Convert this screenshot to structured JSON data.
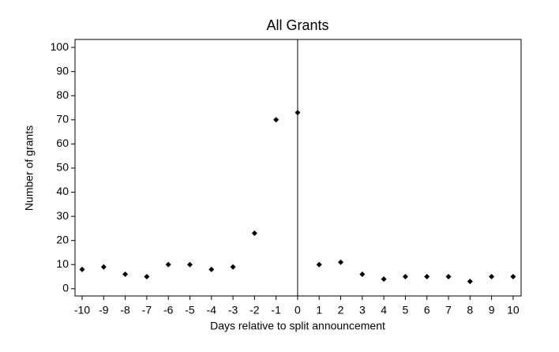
{
  "chart_data": {
    "type": "scatter",
    "title": "All Grants",
    "x_label": "Days relative to split announcement",
    "y_label": "Number of grants",
    "x": [
      -10,
      -9,
      -8,
      -7,
      -6,
      -5,
      -4,
      -3,
      -2,
      -1,
      0,
      1,
      2,
      3,
      4,
      5,
      6,
      7,
      8,
      9,
      10
    ],
    "values": [
      8,
      9,
      6,
      5,
      10,
      10,
      8,
      9,
      23,
      70,
      73,
      10,
      11,
      6,
      4,
      5,
      5,
      5,
      3,
      5,
      5
    ],
    "color": "#000000",
    "xlim": [
      -10.33,
      10.37
    ],
    "xticks": [
      -10,
      -9,
      -8,
      -7,
      -6,
      -5,
      -4,
      -3,
      -2,
      -1,
      0,
      1,
      2,
      3,
      4,
      5,
      6,
      7,
      8,
      9,
      10
    ],
    "ylim": [
      -3,
      103.3
    ],
    "yticks": [
      0,
      10,
      20,
      30,
      40,
      50,
      60,
      70,
      80,
      90,
      100
    ],
    "vline": 0,
    "grid": false
  }
}
